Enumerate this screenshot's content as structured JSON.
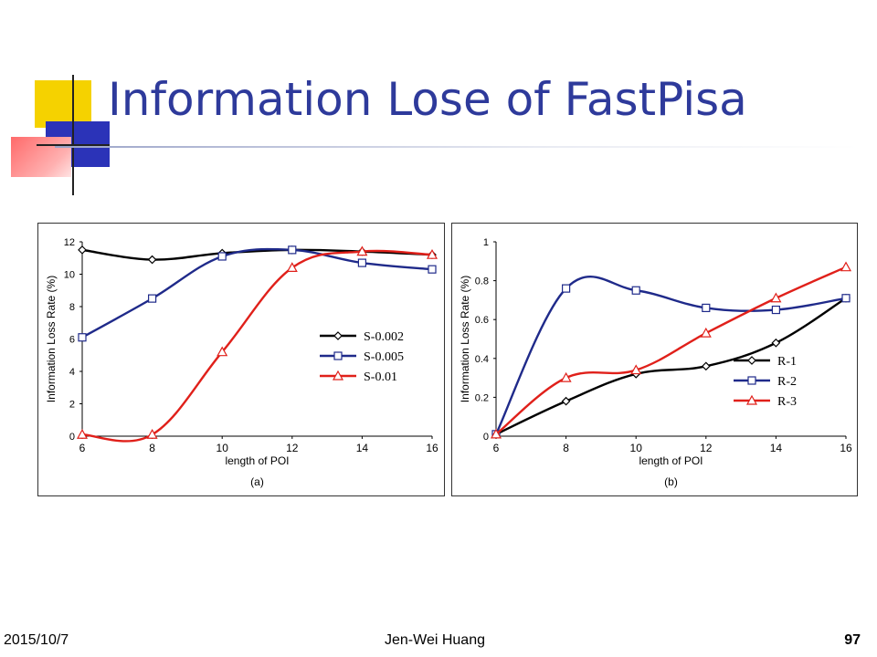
{
  "slide": {
    "title": "Information Lose of FastPisa",
    "footer_date": "2015/10/7",
    "footer_author": "Jen-Wei Huang",
    "page_number": "97"
  },
  "chart_data": [
    {
      "type": "line",
      "panel_label": "(a)",
      "xlabel": "length of POI",
      "ylabel": "Information Loss Rate (%)",
      "x": [
        6,
        8,
        10,
        12,
        14,
        16
      ],
      "xlim": [
        6,
        16
      ],
      "ylim": [
        0,
        12
      ],
      "xticks": [
        "6",
        "8",
        "10",
        "12",
        "14",
        "16"
      ],
      "yticks": [
        "0",
        "2",
        "4",
        "6",
        "8",
        "10",
        "12"
      ],
      "legend_position": "right",
      "series": [
        {
          "name": "S-0.002",
          "marker": "diamond",
          "color": "#000000",
          "values": [
            11.5,
            10.9,
            11.3,
            11.5,
            11.4,
            11.2
          ]
        },
        {
          "name": "S-0.005",
          "marker": "square",
          "color": "#1f2a8a",
          "values": [
            6.1,
            8.5,
            11.1,
            11.5,
            10.7,
            10.3
          ]
        },
        {
          "name": "S-0.01",
          "marker": "triangle",
          "color": "#e0201a",
          "values": [
            0.1,
            0.1,
            5.2,
            10.4,
            11.4,
            11.2
          ]
        }
      ]
    },
    {
      "type": "line",
      "panel_label": "(b)",
      "xlabel": "length of POI",
      "ylabel": "Information Loss Rate (%)",
      "x": [
        6,
        8,
        10,
        12,
        14,
        16
      ],
      "xlim": [
        6,
        16
      ],
      "ylim": [
        0,
        1
      ],
      "xticks": [
        "6",
        "8",
        "10",
        "12",
        "14",
        "16"
      ],
      "yticks": [
        "0",
        "0.2",
        "0.4",
        "0.6",
        "0.8",
        "1"
      ],
      "legend_position": "right",
      "series": [
        {
          "name": "R-1",
          "marker": "diamond",
          "color": "#000000",
          "values": [
            0.01,
            0.18,
            0.32,
            0.36,
            0.48,
            0.71
          ]
        },
        {
          "name": "R-2",
          "marker": "square",
          "color": "#1f2a8a",
          "values": [
            0.01,
            0.76,
            0.75,
            0.66,
            0.65,
            0.71
          ]
        },
        {
          "name": "R-3",
          "marker": "triangle",
          "color": "#e0201a",
          "values": [
            0.01,
            0.3,
            0.34,
            0.53,
            0.71,
            0.87
          ]
        }
      ]
    }
  ]
}
